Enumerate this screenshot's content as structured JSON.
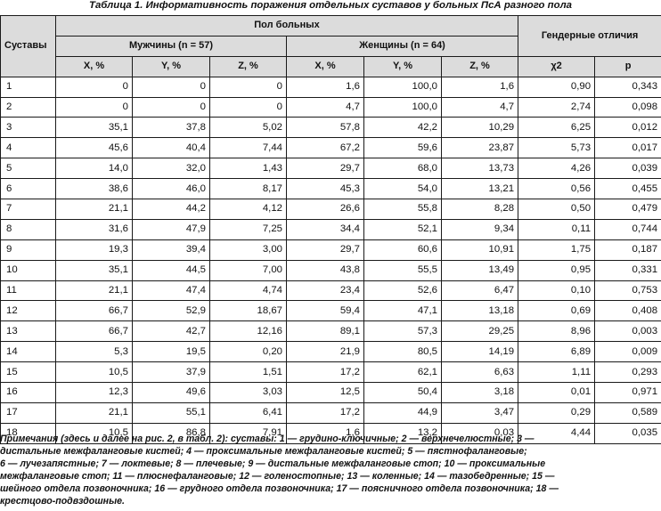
{
  "caption": "Таблица 1. Информативность поражения отдельных суставов у больных ПсА разного пола",
  "header": {
    "joints": "Суставы",
    "sex_group": "Пол больных",
    "men": "Мужчины (n = 57)",
    "women": "Женщины (n = 64)",
    "gender_diff": "Гендерные отличия",
    "cols": [
      "X, %",
      "Y, %",
      "Z, %",
      "X, %",
      "Y, %",
      "Z, %",
      "χ2",
      "p"
    ]
  },
  "rows": [
    [
      "1",
      "0",
      "0",
      "0",
      "1,6",
      "100,0",
      "1,6",
      "0,90",
      "0,343"
    ],
    [
      "2",
      "0",
      "0",
      "0",
      "4,7",
      "100,0",
      "4,7",
      "2,74",
      "0,098"
    ],
    [
      "3",
      "35,1",
      "37,8",
      "5,02",
      "57,8",
      "42,2",
      "10,29",
      "6,25",
      "0,012"
    ],
    [
      "4",
      "45,6",
      "40,4",
      "7,44",
      "67,2",
      "59,6",
      "23,87",
      "5,73",
      "0,017"
    ],
    [
      "5",
      "14,0",
      "32,0",
      "1,43",
      "29,7",
      "68,0",
      "13,73",
      "4,26",
      "0,039"
    ],
    [
      "6",
      "38,6",
      "46,0",
      "8,17",
      "45,3",
      "54,0",
      "13,21",
      "0,56",
      "0,455"
    ],
    [
      "7",
      "21,1",
      "44,2",
      "4,12",
      "26,6",
      "55,8",
      "8,28",
      "0,50",
      "0,479"
    ],
    [
      "8",
      "31,6",
      "47,9",
      "7,25",
      "34,4",
      "52,1",
      "9,34",
      "0,11",
      "0,744"
    ],
    [
      "9",
      "19,3",
      "39,4",
      "3,00",
      "29,7",
      "60,6",
      "10,91",
      "1,75",
      "0,187"
    ],
    [
      "10",
      "35,1",
      "44,5",
      "7,00",
      "43,8",
      "55,5",
      "13,49",
      "0,95",
      "0,331"
    ],
    [
      "11",
      "21,1",
      "47,4",
      "4,74",
      "23,4",
      "52,6",
      "6,47",
      "0,10",
      "0,753"
    ],
    [
      "12",
      "66,7",
      "52,9",
      "18,67",
      "59,4",
      "47,1",
      "13,18",
      "0,69",
      "0,408"
    ],
    [
      "13",
      "66,7",
      "42,7",
      "12,16",
      "89,1",
      "57,3",
      "29,25",
      "8,96",
      "0,003"
    ],
    [
      "14",
      "5,3",
      "19,5",
      "0,20",
      "21,9",
      "80,5",
      "14,19",
      "6,89",
      "0,009"
    ],
    [
      "15",
      "10,5",
      "37,9",
      "1,51",
      "17,2",
      "62,1",
      "6,63",
      "1,11",
      "0,293"
    ],
    [
      "16",
      "12,3",
      "49,6",
      "3,03",
      "12,5",
      "50,4",
      "3,18",
      "0,01",
      "0,971"
    ],
    [
      "17",
      "21,1",
      "55,1",
      "6,41",
      "17,2",
      "44,9",
      "3,47",
      "0,29",
      "0,589"
    ],
    [
      "18",
      "10,5",
      "86,8",
      "7,91",
      "1,6",
      "13,2",
      "0,03",
      "4,44",
      "0,035"
    ]
  ],
  "notes": [
    "Примечания (здесь и далее на рис. 2, в табл. 2): суставы: 1 — грудино-ключичные; 2 — верхнечелюстные; 3 —",
    "дистальные межфаланговые кистей; 4 — проксимальные межфаланговые кистей; 5 — пястнофаланговые;",
    "6 — лучезапястные; 7 — локтевые; 8 — плечевые; 9 — дистальные межфаланговые стоп; 10 — проксимальные",
    "межфаланговые стоп; 11 — плюснефаланговые; 12 — голеностопные; 13 — коленные; 14 — тазобедренные; 15 —",
    "шейного отдела позвоночника; 16 — грудного отдела позвоночника; 17 — поясничного отдела позвоночника; 18 —",
    "крестцово-подвздошные."
  ]
}
